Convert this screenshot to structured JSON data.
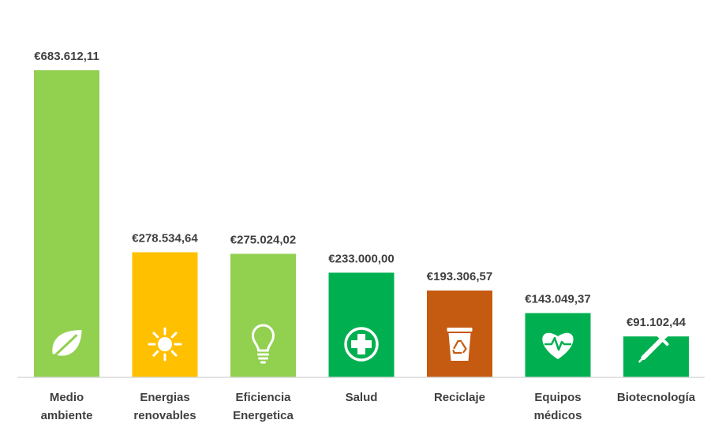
{
  "chart_data": {
    "type": "bar",
    "title": "",
    "xlabel": "",
    "ylabel": "",
    "ylim": [
      0,
      683612.11
    ],
    "grid": false,
    "legend": "none",
    "categories": [
      [
        "Medio",
        "ambiente"
      ],
      [
        "Energias",
        "renovables"
      ],
      [
        "Eficiencia",
        "Energetica"
      ],
      [
        "Salud"
      ],
      [
        "Reciclaje"
      ],
      [
        "Equipos",
        "médicos"
      ],
      [
        "Biotecnología"
      ]
    ],
    "values": [
      683612.11,
      278534.64,
      275024.02,
      233000.0,
      193306.57,
      143049.37,
      91102.44
    ],
    "value_labels": [
      "€683.612,11",
      "€278.534,64",
      "€275.024,02",
      "€233.000,00",
      "€193.306,57",
      "€143.049,37",
      "€91.102,44"
    ],
    "colors": [
      "#92d050",
      "#ffc000",
      "#92d050",
      "#00b050",
      "#c55a11",
      "#00b050",
      "#00b050"
    ],
    "icons": [
      "leaf-icon",
      "sun-icon",
      "lightbulb-icon",
      "medical-cross-icon",
      "recycle-bin-icon",
      "heart-pulse-icon",
      "pipette-icon"
    ]
  }
}
